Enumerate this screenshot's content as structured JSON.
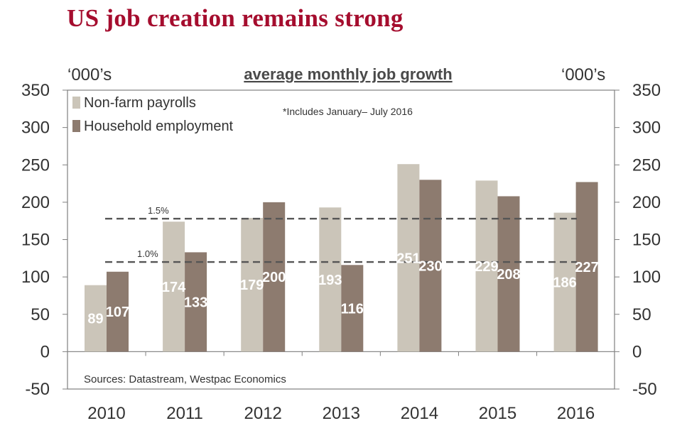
{
  "header": {
    "title": "US job creation remains strong"
  },
  "chart_data": {
    "type": "bar",
    "title": "average monthly job growth",
    "ylabel_left": "‘000’s",
    "ylabel_right": "‘000’s",
    "categories": [
      "2010",
      "2011",
      "2012",
      "2013",
      "2014",
      "2015",
      "2016"
    ],
    "series": [
      {
        "name": "Non-farm payrolls",
        "color": "#cbc5b9",
        "values": [
          89,
          174,
          179,
          193,
          251,
          229,
          186
        ]
      },
      {
        "name": "Household employment",
        "color": "#8d7b6f",
        "values": [
          107,
          133,
          200,
          116,
          230,
          208,
          227
        ]
      }
    ],
    "ylim": [
      -50,
      350
    ],
    "yticks": [
      -50,
      0,
      50,
      100,
      150,
      200,
      250,
      300,
      350
    ],
    "reference_lines": [
      {
        "label": "1.5%",
        "value": 178
      },
      {
        "label": "1.0%",
        "value": 120
      }
    ],
    "note": "*Includes January– July 2016",
    "source": "Sources: Datastream, Westpac Economics",
    "grid": false,
    "legend": "top-left"
  }
}
